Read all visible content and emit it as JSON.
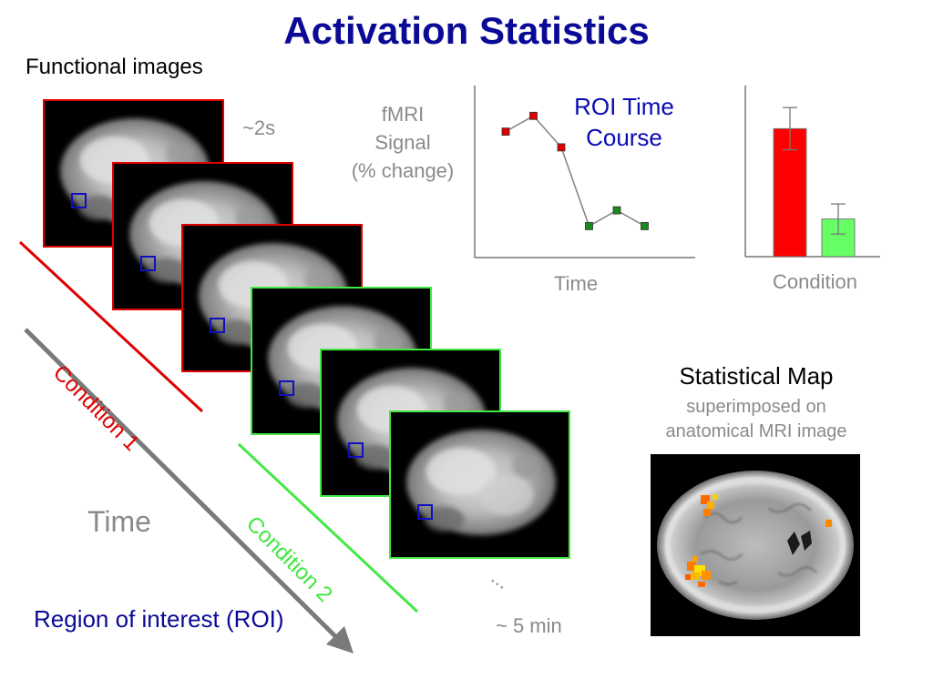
{
  "title": "Activation Statistics",
  "functional_images_label": "Functional images",
  "tr_label": "~2s",
  "fmri_label": [
    "fMRI",
    "Signal",
    "(% change)"
  ],
  "roi_time_course": {
    "title": [
      "ROI Time",
      "Course"
    ],
    "xlabel": "Time",
    "colors": {
      "condition1": "#e00000",
      "condition2": "#1a8a1a"
    },
    "points": [
      {
        "t": 1,
        "signal": 0.8,
        "condition": 1
      },
      {
        "t": 2,
        "signal": 0.9,
        "condition": 1
      },
      {
        "t": 3,
        "signal": 0.7,
        "condition": 1
      },
      {
        "t": 4,
        "signal": 0.2,
        "condition": 2
      },
      {
        "t": 5,
        "signal": 0.3,
        "condition": 2
      },
      {
        "t": 6,
        "signal": 0.2,
        "condition": 2
      }
    ]
  },
  "condition_bars": {
    "xlabel": "Condition",
    "bars": [
      {
        "value": 0.85,
        "err": 0.14,
        "color": "#ff0000"
      },
      {
        "value": 0.25,
        "err": 0.1,
        "color": "#66ff66"
      }
    ],
    "ylim": [
      0,
      1.1
    ]
  },
  "arrow_label": "Time",
  "condition1_label": "Condition 1",
  "condition2_label": "Condition 2",
  "roi_label": "Region of interest (ROI)",
  "duration_label": "~ 5 min",
  "ellipsis": "...",
  "stat_map": {
    "title": "Statistical Map",
    "subtitle": [
      "superimposed on",
      "anatomical MRI image"
    ]
  },
  "colors": {
    "title": "#0a0a96",
    "condition1_frame": "#e00000",
    "condition2_frame": "#44e844",
    "roi_box": "#1010c0",
    "gray_text": "#8a8a8a"
  }
}
